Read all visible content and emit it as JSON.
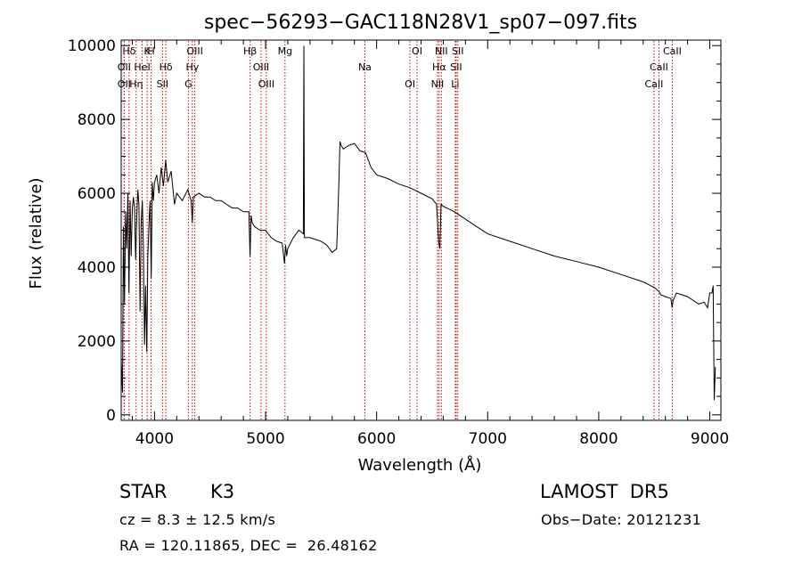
{
  "chart_data": {
    "type": "line",
    "title": "spec−56293−GAC118N28V1_sp07−097.fits",
    "xlabel": "Wavelength (Å)",
    "ylabel": "Flux (relative)",
    "xlim": [
      3700,
      9100
    ],
    "ylim": [
      -150,
      10150
    ],
    "xticks": [
      4000,
      5000,
      6000,
      7000,
      8000,
      9000
    ],
    "yticks": [
      0,
      2000,
      4000,
      6000,
      8000,
      10000
    ],
    "grid": false,
    "line_color": "#000000",
    "marker_color": "#cc0000",
    "series": [
      {
        "x": [
          3700,
          3712,
          3720,
          3730,
          3740,
          3750,
          3760,
          3770,
          3780,
          3790,
          3800,
          3810,
          3820,
          3830,
          3840,
          3850,
          3860,
          3870,
          3880,
          3890,
          3900,
          3910,
          3920,
          3930,
          3940,
          3950,
          3960,
          3970,
          3980,
          3990,
          4000,
          4020,
          4040,
          4060,
          4080,
          4100,
          4120,
          4150,
          4180,
          4200,
          4250,
          4300,
          4330,
          4340,
          4350,
          4400,
          4450,
          4500,
          4550,
          4600,
          4650,
          4700,
          4750,
          4800,
          4850,
          4860,
          4870,
          4880,
          4900,
          4950,
          5000,
          5050,
          5100,
          5150,
          5170,
          5180,
          5190,
          5200,
          5250,
          5300,
          5340,
          5345,
          5350,
          5400,
          5450,
          5500,
          5550,
          5600,
          5640,
          5650,
          5660,
          5670,
          5680,
          5700,
          5750,
          5800,
          5850,
          5900,
          5950,
          6000,
          6100,
          6200,
          6300,
          6400,
          6500,
          6540,
          6560,
          6570,
          6580,
          6600,
          6700,
          6800,
          6900,
          7000,
          7200,
          7400,
          7600,
          7800,
          8000,
          8200,
          8400,
          8500,
          8540,
          8560,
          8600,
          8650,
          8660,
          8670,
          8700,
          8800,
          8900,
          8950,
          8980,
          9000,
          9020,
          9030,
          9040,
          9050
        ],
        "y": [
          1500,
          600,
          5100,
          3000,
          5500,
          4500,
          6000,
          3300,
          5800,
          4300,
          5600,
          5900,
          5600,
          4200,
          5300,
          6100,
          5700,
          2800,
          5200,
          5800,
          4600,
          1900,
          3500,
          1700,
          4300,
          5200,
          5800,
          3700,
          6300,
          5800,
          6300,
          6500,
          6000,
          6700,
          6200,
          6900,
          6300,
          6600,
          5700,
          6000,
          5800,
          6100,
          5800,
          5200,
          5900,
          6000,
          5900,
          5900,
          5800,
          5800,
          5700,
          5600,
          5600,
          5500,
          5500,
          4300,
          5400,
          5200,
          5100,
          5000,
          5000,
          4800,
          4700,
          4650,
          4100,
          4600,
          4300,
          4500,
          4800,
          5000,
          4900,
          10000,
          4800,
          4800,
          4750,
          4700,
          4600,
          4400,
          4500,
          5300,
          6300,
          7400,
          7300,
          7200,
          7300,
          7350,
          7150,
          7100,
          6700,
          6500,
          6400,
          6250,
          6150,
          6000,
          5850,
          5700,
          4650,
          4500,
          5700,
          5650,
          5500,
          5300,
          5100,
          4900,
          4700,
          4500,
          4300,
          4150,
          4000,
          3800,
          3600,
          3450,
          3350,
          3250,
          3200,
          3150,
          2900,
          3100,
          3300,
          3200,
          3000,
          3050,
          2900,
          3300,
          3300,
          3500,
          400,
          1300
        ]
      }
    ],
    "line_markers": [
      {
        "label": "Hδ",
        "wl": 3771
      },
      {
        "label": "OII",
        "wl": 3727
      },
      {
        "label": "OII",
        "wl": 3727
      },
      {
        "label": "K",
        "wl": 3934
      },
      {
        "label": "HeI",
        "wl": 3889
      },
      {
        "label": "Hη",
        "wl": 3835
      },
      {
        "label": "H",
        "wl": 3969
      },
      {
        "label": "Hδ",
        "wl": 4102
      },
      {
        "label": "SII",
        "wl": 4072
      },
      {
        "label": "OIII",
        "wl": 4363
      },
      {
        "label": "Hγ",
        "wl": 4341
      },
      {
        "label": "G",
        "wl": 4305
      },
      {
        "label": "Hβ",
        "wl": 4861
      },
      {
        "label": "OIII",
        "wl": 4959
      },
      {
        "label": "OIII",
        "wl": 5007
      },
      {
        "label": "Mg",
        "wl": 5175
      },
      {
        "label": "Na",
        "wl": 5894
      },
      {
        "label": "OI",
        "wl": 6300
      },
      {
        "label": "OI",
        "wl": 6364
      },
      {
        "label": "Hα",
        "wl": 6563
      },
      {
        "label": "NII",
        "wl": 6548
      },
      {
        "label": "NII",
        "wl": 6583
      },
      {
        "label": "SII",
        "wl": 6716
      },
      {
        "label": "Li",
        "wl": 6708
      },
      {
        "label": "SII",
        "wl": 6731
      },
      {
        "label": "CaII",
        "wl": 8542
      },
      {
        "label": "CaII",
        "wl": 8498
      },
      {
        "label": "CaII",
        "wl": 8662
      }
    ]
  },
  "info": {
    "object_type": "STAR",
    "subclass": "K3",
    "survey": "LAMOST  DR5",
    "cz": "cz = 8.3 ± 12.5 km/s",
    "obs_date": "Obs−Date: 20121231",
    "radec": "RA = 120.11865, DEC =  26.48162"
  }
}
